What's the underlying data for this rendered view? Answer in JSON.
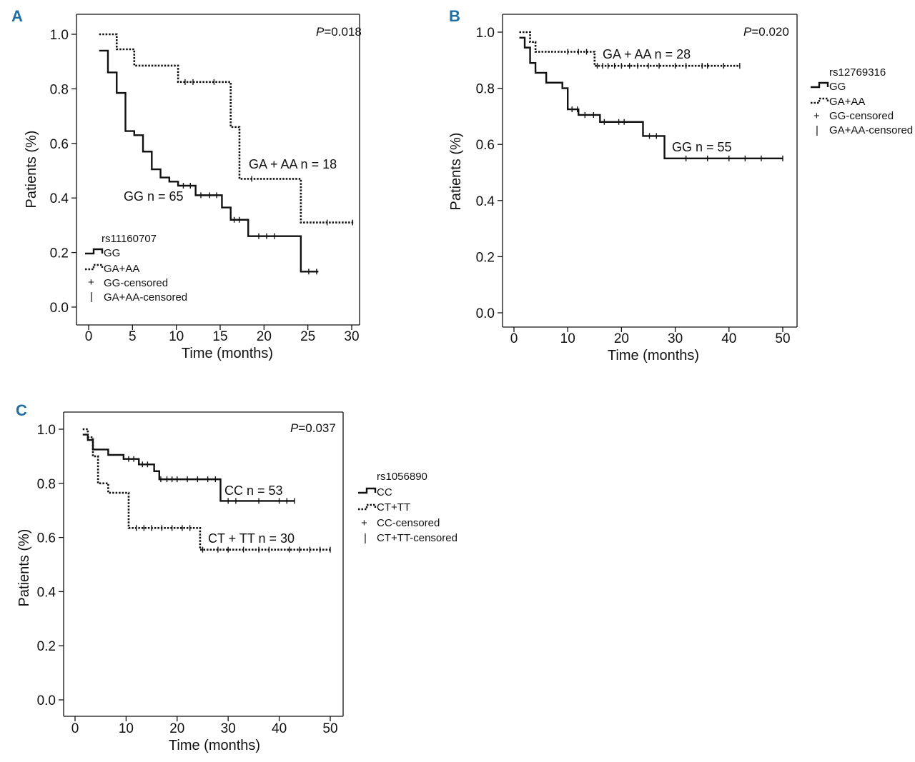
{
  "chart_data": [
    {
      "panel": "A",
      "type": "line",
      "subtype": "kaplan-meier",
      "p_value": {
        "prefix": "P",
        "value": "=0.018"
      },
      "xlabel": "Time (months)",
      "ylabel": "Patients (%)",
      "xlim": [
        0,
        30
      ],
      "ylim": [
        0,
        1.0
      ],
      "xticks": [
        "0",
        "5",
        "10",
        "15",
        "20",
        "25",
        "30"
      ],
      "yticks": [
        "0.0",
        "0.2",
        "0.4",
        "0.6",
        "0.8",
        "1.0"
      ],
      "legend": {
        "title": "rs11160707",
        "items": [
          "GG",
          "GA+AA",
          "GG-censored",
          "GA+AA-censored"
        ],
        "placement": "bottom-left"
      },
      "series": [
        {
          "name": "GG",
          "label": "GG n = 65",
          "style": "solid",
          "steps": [
            [
              1.2,
              0.94
            ],
            [
              2.2,
              0.86
            ],
            [
              3.2,
              0.785
            ],
            [
              4.2,
              0.645
            ],
            [
              5.2,
              0.63
            ],
            [
              6.2,
              0.57
            ],
            [
              7.2,
              0.505
            ],
            [
              8.2,
              0.475
            ],
            [
              9.2,
              0.46
            ],
            [
              10.2,
              0.445
            ],
            [
              12.2,
              0.41
            ],
            [
              15.2,
              0.365
            ],
            [
              16.2,
              0.32
            ],
            [
              18.2,
              0.26
            ],
            [
              24.2,
              0.13
            ],
            [
              26.2,
              0.13
            ]
          ],
          "censored": [
            10.8,
            11.6,
            12.8,
            13.8,
            14.6,
            16.6,
            17.2,
            19.4,
            20.3,
            21.2,
            25.1,
            26.0
          ]
        },
        {
          "name": "GA+AA",
          "label": "GA + AA n = 18",
          "style": "dotted",
          "steps": [
            [
              1.2,
              1.0
            ],
            [
              3.2,
              0.945
            ],
            [
              5.2,
              0.885
            ],
            [
              10.2,
              0.825
            ],
            [
              16.2,
              0.66
            ],
            [
              17.2,
              0.47
            ],
            [
              24.2,
              0.31
            ],
            [
              30.2,
              0.31
            ]
          ],
          "censored": [
            11.0,
            11.9,
            14.3,
            18.6,
            27.2,
            30.1
          ]
        }
      ]
    },
    {
      "panel": "B",
      "type": "line",
      "subtype": "kaplan-meier",
      "p_value": {
        "prefix": "P",
        "value": "=0.020"
      },
      "xlabel": "Time (months)",
      "ylabel": "Patients (%)",
      "xlim": [
        0,
        50
      ],
      "ylim": [
        0,
        1.0
      ],
      "xticks": [
        "0",
        "10",
        "20",
        "30",
        "40",
        "50"
      ],
      "yticks": [
        "0.0",
        "0.2",
        "0.4",
        "0.6",
        "0.8",
        "1.0"
      ],
      "legend": {
        "title": "rs12769316",
        "items": [
          "GG",
          "GA+AA",
          "GG-censored",
          "GA+AA-censored"
        ],
        "placement": "right"
      },
      "series": [
        {
          "name": "GG",
          "label": "GG n = 55",
          "style": "solid",
          "steps": [
            [
              1.0,
              0.98
            ],
            [
              2.0,
              0.945
            ],
            [
              3.0,
              0.89
            ],
            [
              4.0,
              0.855
            ],
            [
              6.0,
              0.82
            ],
            [
              9.0,
              0.8
            ],
            [
              10.0,
              0.725
            ],
            [
              12.0,
              0.705
            ],
            [
              16.0,
              0.68
            ],
            [
              24.0,
              0.63
            ],
            [
              28.0,
              0.55
            ],
            [
              50.0,
              0.55
            ]
          ],
          "censored": [
            10.8,
            11.8,
            13.2,
            14.8,
            16.8,
            19.5,
            20.5,
            25.2,
            26.5,
            32,
            36,
            40,
            43,
            46,
            50
          ]
        },
        {
          "name": "GA+AA",
          "label": "GA + AA n = 28",
          "style": "dotted",
          "steps": [
            [
              1.0,
              1.0
            ],
            [
              3.0,
              0.965
            ],
            [
              4.0,
              0.93
            ],
            [
              15.0,
              0.88
            ],
            [
              42.0,
              0.88
            ]
          ],
          "censored": [
            10,
            12,
            13.5,
            15.5,
            16.5,
            17.5,
            18.7,
            20,
            21.5,
            23,
            25,
            27,
            30,
            32,
            35,
            36,
            39,
            42
          ]
        }
      ]
    },
    {
      "panel": "C",
      "type": "line",
      "subtype": "kaplan-meier",
      "p_value": {
        "prefix": "P",
        "value": "=0.037"
      },
      "xlabel": "Time (months)",
      "ylabel": "Patients (%)",
      "xlim": [
        0,
        50
      ],
      "ylim": [
        0,
        1.0
      ],
      "xticks": [
        "0",
        "10",
        "20",
        "30",
        "40",
        "50"
      ],
      "yticks": [
        "0.0",
        "0.2",
        "0.4",
        "0.6",
        "0.8",
        "1.0"
      ],
      "legend": {
        "title": "rs1056890",
        "items": [
          "CC",
          "CT+TT",
          "CC-censored",
          "CT+TT-censored"
        ],
        "placement": "right"
      },
      "series": [
        {
          "name": "CC",
          "label": "CC n = 53",
          "style": "solid",
          "steps": [
            [
              1.5,
              0.98
            ],
            [
              2.5,
              0.96
            ],
            [
              3.5,
              0.925
            ],
            [
              6.5,
              0.905
            ],
            [
              9.5,
              0.89
            ],
            [
              12.5,
              0.87
            ],
            [
              15.5,
              0.845
            ],
            [
              16.5,
              0.815
            ],
            [
              28.5,
              0.735
            ],
            [
              43.0,
              0.735
            ]
          ],
          "censored": [
            10.5,
            11.5,
            13.2,
            14.2,
            16.8,
            18,
            19,
            20,
            22,
            24,
            26,
            27.5,
            30,
            31.5,
            36,
            40,
            41.5,
            43
          ]
        },
        {
          "name": "CT+TT",
          "label": "CT + TT n = 30",
          "style": "dotted",
          "steps": [
            [
              1.5,
              1.0
            ],
            [
              2.5,
              0.97
            ],
            [
              3.5,
              0.9
            ],
            [
              4.5,
              0.8
            ],
            [
              6.5,
              0.765
            ],
            [
              10.5,
              0.635
            ],
            [
              24.5,
              0.555
            ],
            [
              50.0,
              0.555
            ]
          ],
          "censored": [
            12,
            13.5,
            15,
            17,
            19,
            21,
            22.5,
            25,
            28,
            30,
            33,
            36,
            38,
            42,
            44,
            46,
            48,
            50
          ]
        }
      ]
    }
  ]
}
